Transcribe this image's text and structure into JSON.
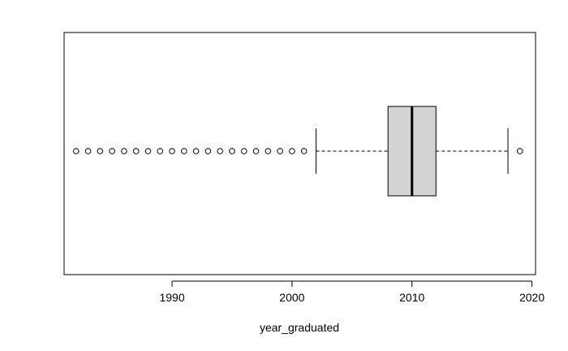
{
  "chart_data": {
    "type": "boxplot",
    "orientation": "horizontal",
    "title": "",
    "xlabel": "year_graduated",
    "ylabel": "",
    "xlim": [
      1981,
      2020.3
    ],
    "xticks": [
      1990,
      2000,
      2010,
      2020
    ],
    "xtick_labels": [
      "1990",
      "2000",
      "2010",
      "2020"
    ],
    "box": {
      "whisker_low": 2002,
      "q1": 2008,
      "median": 2010,
      "q3": 2012,
      "whisker_high": 2018,
      "fill": "#d3d3d3"
    },
    "outliers": [
      1982,
      1983,
      1984,
      1985,
      1986,
      1987,
      1988,
      1989,
      1990,
      1991,
      1992,
      1993,
      1994,
      1995,
      1996,
      1997,
      1998,
      1999,
      2000,
      2001,
      2019
    ]
  }
}
